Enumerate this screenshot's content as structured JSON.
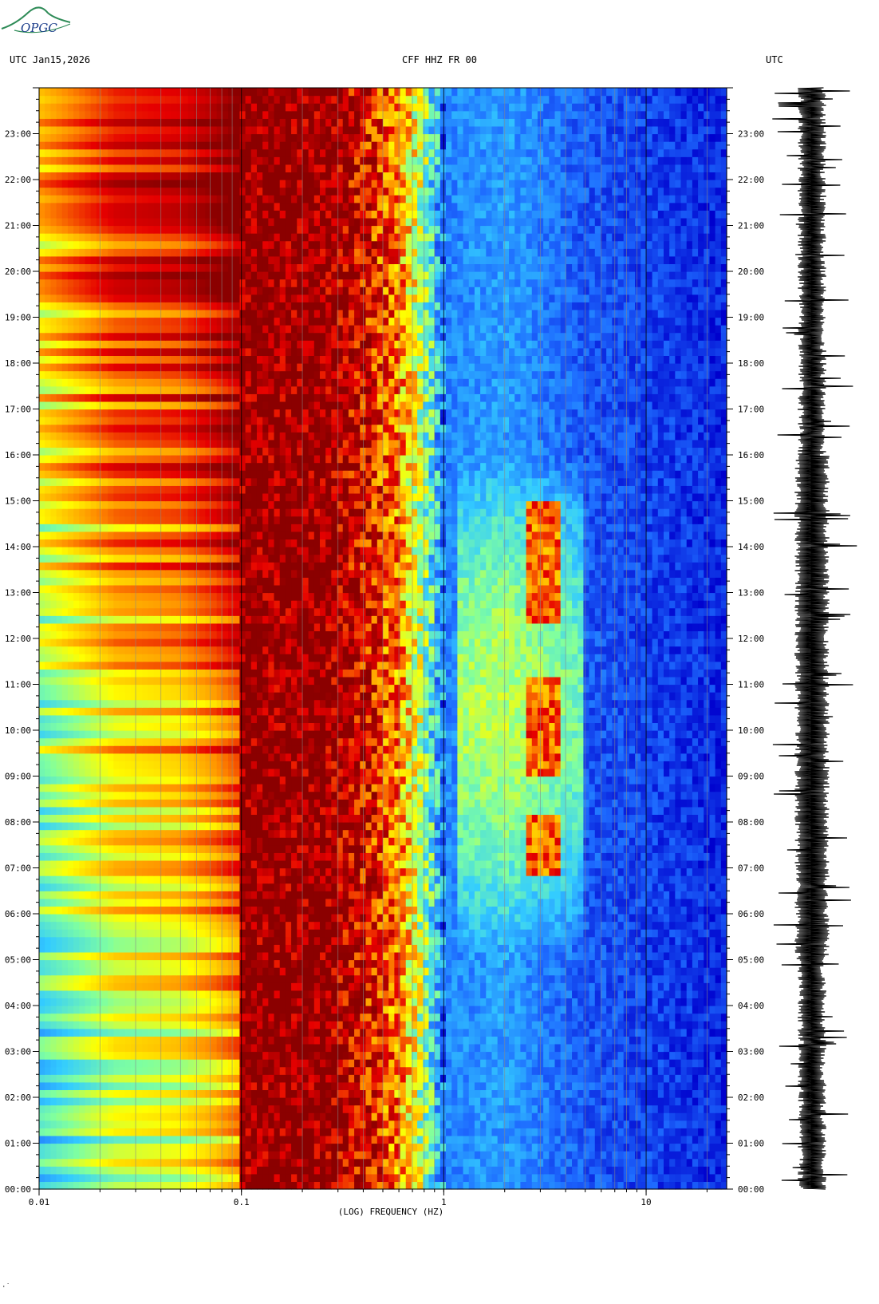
{
  "logo": {
    "text": "OPGC",
    "color": "#2e8b57",
    "text_color": "#1a3c8a"
  },
  "header": {
    "left": "UTC  Jan15,2026",
    "center": "CFF HHZ FR 00",
    "right": "UTC"
  },
  "corner_mark": "·˙",
  "chart_data": {
    "type": "heatmap",
    "title": "CFF HHZ FR 00",
    "date": "Jan15,2026",
    "xlabel": "(LOG) FREQUENCY (HZ)",
    "x_scale": "log",
    "xlim": [
      0.01,
      25
    ],
    "x_ticks": [
      "0.01",
      "0.1",
      "1",
      "10"
    ],
    "x_gridlines_hz": [
      0.02,
      0.03,
      0.04,
      0.05,
      0.06,
      0.07,
      0.08,
      0.09,
      0.1,
      0.2,
      0.3,
      0.4,
      0.5,
      0.6,
      0.7,
      0.8,
      0.9,
      1,
      2,
      3,
      4,
      5,
      6,
      7,
      8,
      9,
      10,
      20
    ],
    "ylabel": "UTC",
    "ylim_hours": [
      0,
      24
    ],
    "y_ticks": [
      "00:00",
      "01:00",
      "02:00",
      "03:00",
      "04:00",
      "05:00",
      "06:00",
      "07:00",
      "08:00",
      "09:00",
      "10:00",
      "11:00",
      "12:00",
      "13:00",
      "14:00",
      "15:00",
      "16:00",
      "17:00",
      "18:00",
      "19:00",
      "20:00",
      "21:00",
      "22:00",
      "23:00"
    ],
    "colormap": [
      "#0000cd",
      "#1e6bff",
      "#33ccff",
      "#7fffa0",
      "#ffff00",
      "#ff8c00",
      "#e60000",
      "#8b0000"
    ],
    "power_by_frequency": [
      {
        "hz": 0.01,
        "level": 0.62
      },
      {
        "hz": 0.024,
        "level": 0.8
      },
      {
        "hz": 0.05,
        "level": 0.84
      },
      {
        "hz": 0.07,
        "level": 0.9
      },
      {
        "hz": 0.1,
        "level": 1.0
      },
      {
        "hz": 0.25,
        "level": 1.0
      },
      {
        "hz": 0.4,
        "level": 0.88
      },
      {
        "hz": 0.6,
        "level": 0.72
      },
      {
        "hz": 0.8,
        "level": 0.45
      },
      {
        "hz": 1.0,
        "level": 0.18
      },
      {
        "hz": 2.0,
        "level": 0.22
      },
      {
        "hz": 5.0,
        "level": 0.12
      },
      {
        "hz": 25.0,
        "level": 0.05
      }
    ],
    "daytime_energy": {
      "hz_range": [
        1.2,
        5.0
      ],
      "hours_range": [
        5,
        16
      ],
      "peak_level": 0.88,
      "peak_hz_range": [
        2.5,
        3.8
      ],
      "peak_hours_ranges": [
        [
          6.8,
          8.2
        ],
        [
          9.0,
          11.2
        ],
        [
          12.3,
          15.0
        ]
      ]
    },
    "low_freq_trend": {
      "start_level_shift": -0.35,
      "end_level_shift": 0.08
    },
    "trace": {
      "label": "seismogram",
      "color": "#000000"
    }
  }
}
